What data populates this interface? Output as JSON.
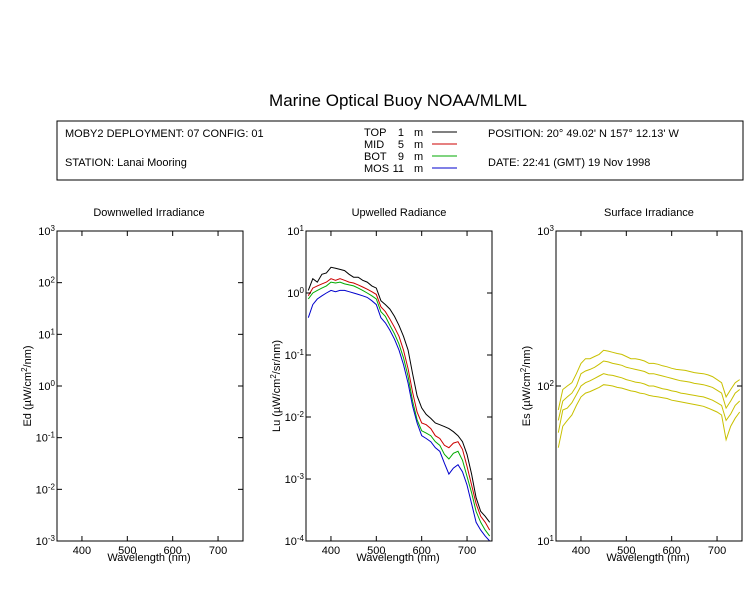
{
  "title": "Marine Optical Buoy NOAA/MLML",
  "info": {
    "deployment": "MOBY2 DEPLOYMENT: 07 CONFIG: 01",
    "station": "STATION: Lanai Mooring",
    "position": "POSITION: 20° 49.02' N   157° 12.13' W",
    "date": "DATE: 22:41 (GMT) 19 Nov 1998"
  },
  "legend": [
    {
      "name": "TOP",
      "depth": "1",
      "unit": "m",
      "color": "#000000"
    },
    {
      "name": "MID",
      "depth": "5",
      "unit": "m",
      "color": "#cc0000"
    },
    {
      "name": "BOT",
      "depth": "9",
      "unit": "m",
      "color": "#00aa00"
    },
    {
      "name": "MOS",
      "depth": "11",
      "unit": "m",
      "color": "#0000cc"
    }
  ],
  "panels": [
    {
      "title": "Downwelled Irradiance",
      "xlabel": "Wavelength (nm)",
      "ylabel": {
        "prefix": "Ed  (µW/cm",
        "sup": "2",
        "suffix": "/nm)"
      },
      "ytick_exps": [
        "3",
        "2",
        "1",
        "0",
        "-1",
        "-2",
        "-3"
      ],
      "xticks": [
        "400",
        "500",
        "600",
        "700"
      ]
    },
    {
      "title": "Upwelled Radiance",
      "xlabel": "Wavelength (nm)",
      "ylabel": {
        "prefix": "Lu  (µW/cm",
        "sup": "2",
        "suffix": "/sr/nm)"
      },
      "ytick_exps": [
        "1",
        "0",
        "-1",
        "-2",
        "-3",
        "-4"
      ],
      "xticks": [
        "400",
        "500",
        "600",
        "700"
      ]
    },
    {
      "title": "Surface Irradiance",
      "xlabel": "Wavelength (nm)",
      "ylabel": {
        "prefix": "Es  (µW/cm",
        "sup": "2",
        "suffix": "/nm)"
      },
      "ytick_exps": [
        "3",
        "2",
        "1"
      ],
      "xticks": [
        "400",
        "500",
        "600",
        "700"
      ]
    }
  ],
  "chart_data": [
    {
      "type": "line",
      "title": "Downwelled Irradiance",
      "xlabel": "Wavelength (nm)",
      "ylabel": "Ed (µW/cm2/nm)",
      "xlim": [
        345,
        755
      ],
      "ylim": [
        0.001,
        1000
      ],
      "yscale": "log",
      "series": []
    },
    {
      "type": "line",
      "title": "Upwelled Radiance",
      "xlabel": "Wavelength (nm)",
      "ylabel": "Lu (µW/cm2/sr/nm)",
      "xlim": [
        345,
        755
      ],
      "ylim": [
        0.0001,
        10
      ],
      "yscale": "log",
      "series": [
        {
          "name": "TOP",
          "color": "#000000",
          "x": [
            350,
            360,
            370,
            380,
            390,
            400,
            410,
            420,
            430,
            440,
            450,
            460,
            470,
            480,
            490,
            500,
            510,
            520,
            530,
            540,
            550,
            560,
            570,
            580,
            590,
            600,
            610,
            620,
            630,
            640,
            650,
            660,
            670,
            680,
            690,
            700,
            710,
            720,
            730,
            740,
            750
          ],
          "y": [
            1.1,
            1.7,
            1.5,
            2.0,
            2.1,
            2.6,
            2.5,
            2.4,
            2.3,
            2.0,
            1.8,
            1.8,
            1.6,
            1.5,
            1.3,
            1.2,
            0.75,
            0.65,
            0.55,
            0.42,
            0.3,
            0.2,
            0.12,
            0.05,
            0.022,
            0.014,
            0.011,
            0.0095,
            0.008,
            0.0075,
            0.007,
            0.0065,
            0.0058,
            0.005,
            0.004,
            0.0025,
            0.0012,
            0.0005,
            0.0003,
            0.00025,
            0.0002
          ]
        },
        {
          "name": "MID",
          "color": "#cc0000",
          "x": [
            350,
            360,
            370,
            380,
            390,
            400,
            410,
            420,
            430,
            440,
            450,
            460,
            470,
            480,
            490,
            500,
            510,
            520,
            530,
            540,
            550,
            560,
            570,
            580,
            590,
            600,
            610,
            620,
            630,
            640,
            650,
            660,
            670,
            680,
            690,
            700,
            710,
            720,
            730,
            740,
            750
          ],
          "y": [
            0.9,
            1.2,
            1.3,
            1.4,
            1.5,
            1.7,
            1.6,
            1.7,
            1.6,
            1.5,
            1.45,
            1.35,
            1.25,
            1.15,
            1.05,
            0.95,
            0.6,
            0.5,
            0.38,
            0.28,
            0.2,
            0.12,
            0.06,
            0.025,
            0.012,
            0.008,
            0.0075,
            0.0065,
            0.005,
            0.0045,
            0.0035,
            0.0032,
            0.0038,
            0.004,
            0.003,
            0.0016,
            0.0008,
            0.0004,
            0.00025,
            0.0002,
            0.00015
          ]
        },
        {
          "name": "BOT",
          "color": "#00aa00",
          "x": [
            350,
            360,
            370,
            380,
            390,
            400,
            410,
            420,
            430,
            440,
            450,
            460,
            470,
            480,
            490,
            500,
            510,
            520,
            530,
            540,
            550,
            560,
            570,
            580,
            590,
            600,
            610,
            620,
            630,
            640,
            650,
            660,
            670,
            680,
            690,
            700,
            710,
            720,
            730,
            740,
            750
          ],
          "y": [
            0.8,
            1.0,
            1.1,
            1.2,
            1.3,
            1.5,
            1.45,
            1.5,
            1.4,
            1.35,
            1.3,
            1.2,
            1.1,
            1.0,
            0.9,
            0.8,
            0.5,
            0.42,
            0.3,
            0.22,
            0.15,
            0.09,
            0.045,
            0.018,
            0.009,
            0.006,
            0.0055,
            0.005,
            0.004,
            0.0035,
            0.0025,
            0.0021,
            0.0026,
            0.0028,
            0.002,
            0.0011,
            0.0006,
            0.0003,
            0.0002,
            0.00015,
            0.00012
          ]
        },
        {
          "name": "MOS",
          "color": "#0000cc",
          "x": [
            350,
            360,
            370,
            380,
            390,
            400,
            410,
            420,
            430,
            440,
            450,
            460,
            470,
            480,
            490,
            500,
            510,
            520,
            530,
            540,
            550,
            560,
            570,
            580,
            590,
            600,
            610,
            620,
            630,
            640,
            650,
            660,
            670,
            680,
            690,
            700,
            710,
            720,
            730,
            740,
            750
          ],
          "y": [
            0.4,
            0.65,
            0.8,
            0.9,
            1.0,
            1.1,
            1.05,
            1.1,
            1.1,
            1.05,
            1.0,
            0.95,
            0.9,
            0.85,
            0.75,
            0.65,
            0.4,
            0.33,
            0.25,
            0.18,
            0.12,
            0.07,
            0.035,
            0.015,
            0.008,
            0.005,
            0.0045,
            0.004,
            0.0032,
            0.0028,
            0.0018,
            0.0012,
            0.0015,
            0.0017,
            0.0013,
            0.0008,
            0.0004,
            0.0002,
            0.00015,
            0.00012,
            0.0001
          ]
        }
      ]
    },
    {
      "type": "line",
      "title": "Surface Irradiance",
      "xlabel": "Wavelength (nm)",
      "ylabel": "Es (µW/cm2/nm)",
      "xlim": [
        345,
        755
      ],
      "ylim": [
        10,
        1000
      ],
      "yscale": "log",
      "color": "#c8c000",
      "series": [
        {
          "x": [
            350,
            360,
            370,
            380,
            390,
            400,
            410,
            420,
            430,
            440,
            450,
            460,
            470,
            480,
            490,
            500,
            510,
            520,
            530,
            540,
            550,
            560,
            570,
            580,
            590,
            600,
            610,
            620,
            630,
            640,
            650,
            660,
            670,
            680,
            690,
            700,
            710,
            720,
            730,
            740,
            750
          ],
          "y": [
            70,
            95,
            100,
            105,
            120,
            140,
            150,
            150,
            155,
            160,
            170,
            168,
            165,
            162,
            160,
            155,
            150,
            150,
            148,
            145,
            140,
            140,
            138,
            135,
            133,
            130,
            128,
            127,
            126,
            124,
            122,
            121,
            120,
            118,
            115,
            110,
            105,
            85,
            95,
            105,
            110
          ]
        },
        {
          "x": [
            350,
            360,
            370,
            380,
            390,
            400,
            410,
            420,
            430,
            440,
            450,
            460,
            470,
            480,
            490,
            500,
            510,
            520,
            530,
            540,
            550,
            560,
            570,
            580,
            590,
            600,
            610,
            620,
            630,
            640,
            650,
            660,
            670,
            680,
            690,
            700,
            710,
            720,
            730,
            740,
            750
          ],
          "y": [
            60,
            80,
            85,
            90,
            100,
            120,
            125,
            128,
            132,
            138,
            145,
            143,
            140,
            138,
            136,
            132,
            130,
            128,
            126,
            124,
            120,
            120,
            118,
            116,
            114,
            112,
            110,
            108,
            107,
            106,
            104,
            103,
            102,
            100,
            98,
            94,
            90,
            72,
            80,
            90,
            95
          ]
        },
        {
          "x": [
            350,
            360,
            370,
            380,
            390,
            400,
            410,
            420,
            430,
            440,
            450,
            460,
            470,
            480,
            490,
            500,
            510,
            520,
            530,
            540,
            550,
            560,
            570,
            580,
            590,
            600,
            610,
            620,
            630,
            640,
            650,
            660,
            670,
            680,
            690,
            700,
            710,
            720,
            730,
            740,
            750
          ],
          "y": [
            50,
            70,
            72,
            78,
            88,
            100,
            105,
            108,
            112,
            116,
            120,
            118,
            117,
            115,
            113,
            110,
            108,
            106,
            105,
            103,
            100,
            100,
            98,
            96,
            95,
            93,
            92,
            90,
            89,
            88,
            87,
            86,
            85,
            83,
            81,
            78,
            75,
            60,
            66,
            75,
            80
          ]
        },
        {
          "x": [
            350,
            360,
            370,
            380,
            390,
            400,
            410,
            420,
            430,
            440,
            450,
            460,
            470,
            480,
            490,
            500,
            510,
            520,
            530,
            540,
            550,
            560,
            570,
            580,
            590,
            600,
            610,
            620,
            630,
            640,
            650,
            660,
            670,
            680,
            690,
            700,
            710,
            720,
            730,
            740,
            750
          ],
          "y": [
            40,
            55,
            60,
            65,
            75,
            85,
            90,
            92,
            95,
            98,
            102,
            101,
            100,
            98,
            97,
            95,
            93,
            92,
            90,
            89,
            87,
            86,
            85,
            84,
            83,
            81,
            80,
            79,
            78,
            77,
            76,
            75,
            74,
            72,
            70,
            68,
            65,
            45,
            55,
            62,
            68
          ]
        }
      ]
    }
  ]
}
